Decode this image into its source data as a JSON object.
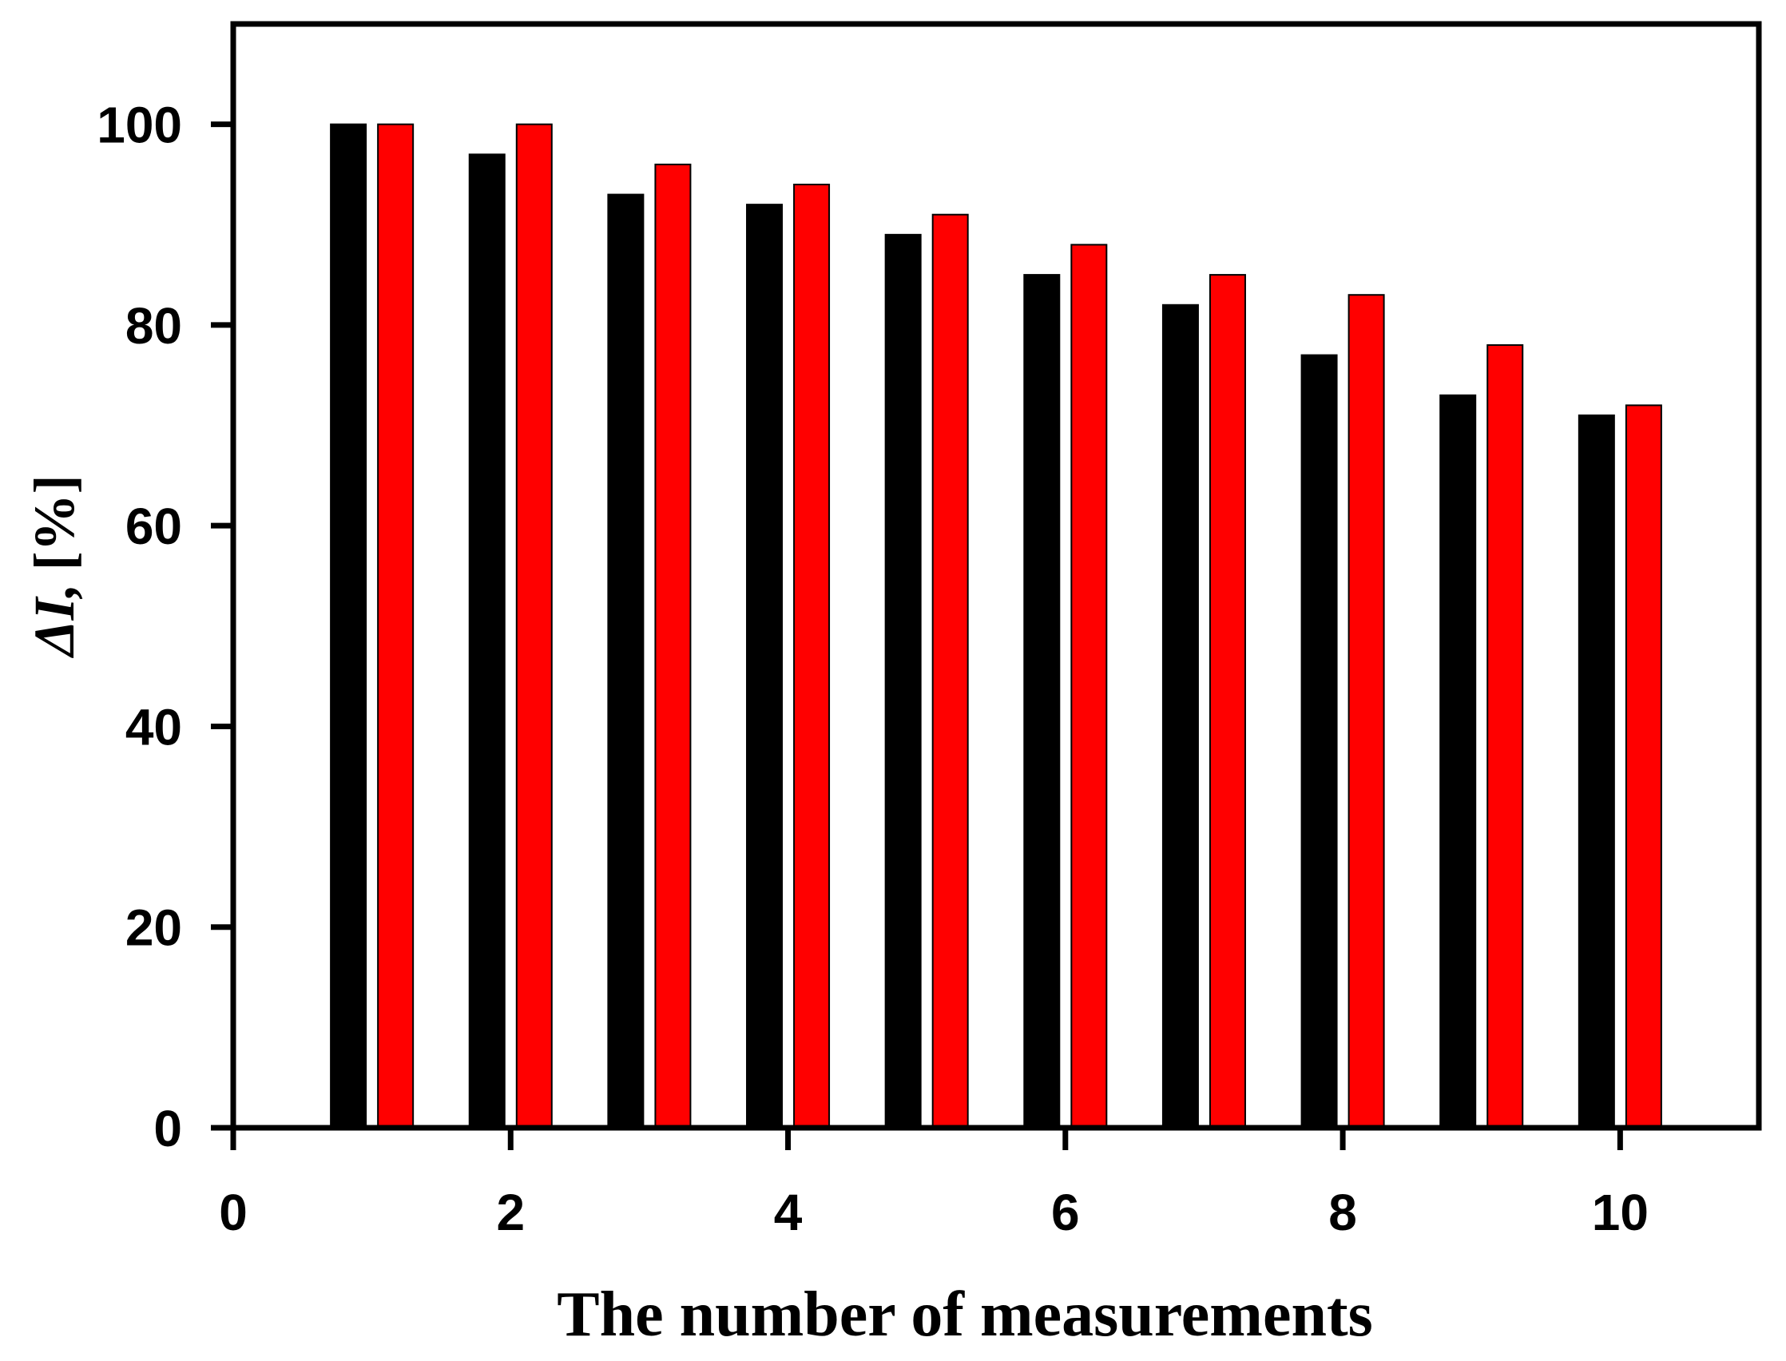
{
  "chart_data": {
    "type": "bar",
    "xlabel": "The number of measurements",
    "ylabel_symbol": "ΔI,",
    "ylabel_unit": "[%]",
    "xlim": [
      0,
      11
    ],
    "ylim": [
      0,
      110
    ],
    "xticks": [
      0,
      2,
      4,
      6,
      8,
      10
    ],
    "yticks": [
      0,
      20,
      40,
      60,
      80,
      100
    ],
    "grid": false,
    "categories": [
      1,
      2,
      3,
      4,
      5,
      6,
      7,
      8,
      9,
      10
    ],
    "series": [
      {
        "color": "#000000",
        "values": [
          100,
          97,
          93,
          92,
          89,
          85,
          82,
          77,
          73,
          71
        ]
      },
      {
        "color": "#ff0000",
        "values": [
          100,
          100,
          96,
          94,
          91,
          88,
          85,
          83,
          78,
          72
        ]
      }
    ]
  }
}
